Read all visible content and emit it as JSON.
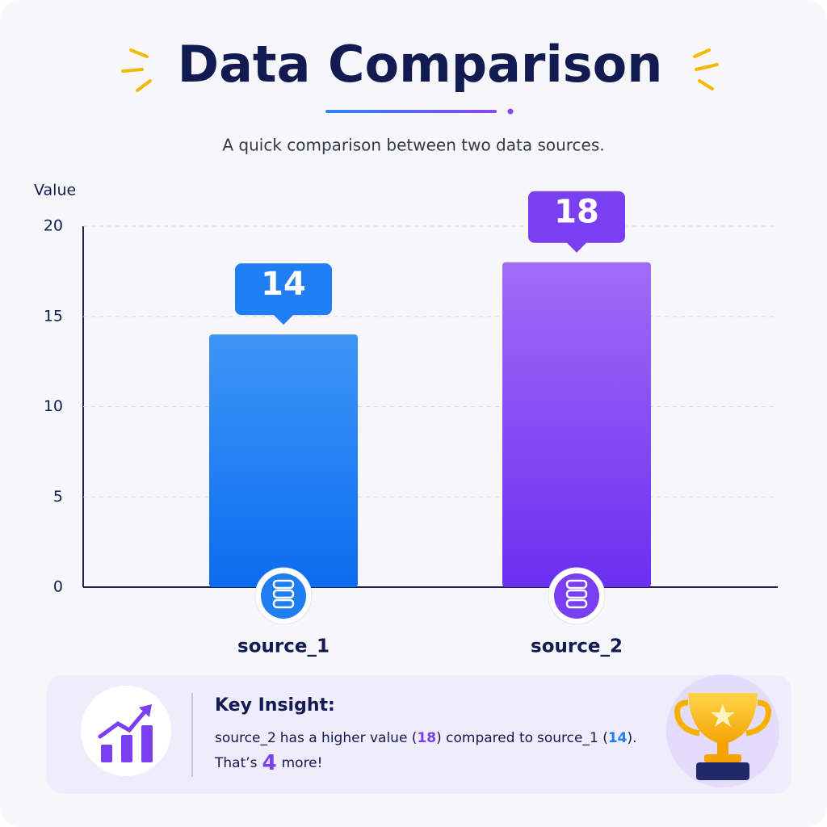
{
  "chart_data": {
    "type": "bar",
    "title": "Data Comparison",
    "subtitle": "A quick comparison between two data sources.",
    "y_label": "Value",
    "categories": [
      "source_1",
      "source_2"
    ],
    "values": [
      14,
      18
    ],
    "colors": [
      "#1f7ff2",
      "#7a3ff0"
    ],
    "ylim": [
      0,
      20
    ],
    "yticks": [
      0,
      5,
      10,
      15,
      20
    ],
    "grid": true
  },
  "insight": {
    "heading": "Key Insight:",
    "text": [
      "has a higher value (",
      ") compared to",
      " (",
      ").",
      "That’s",
      "more!"
    ],
    "difference": 4
  }
}
